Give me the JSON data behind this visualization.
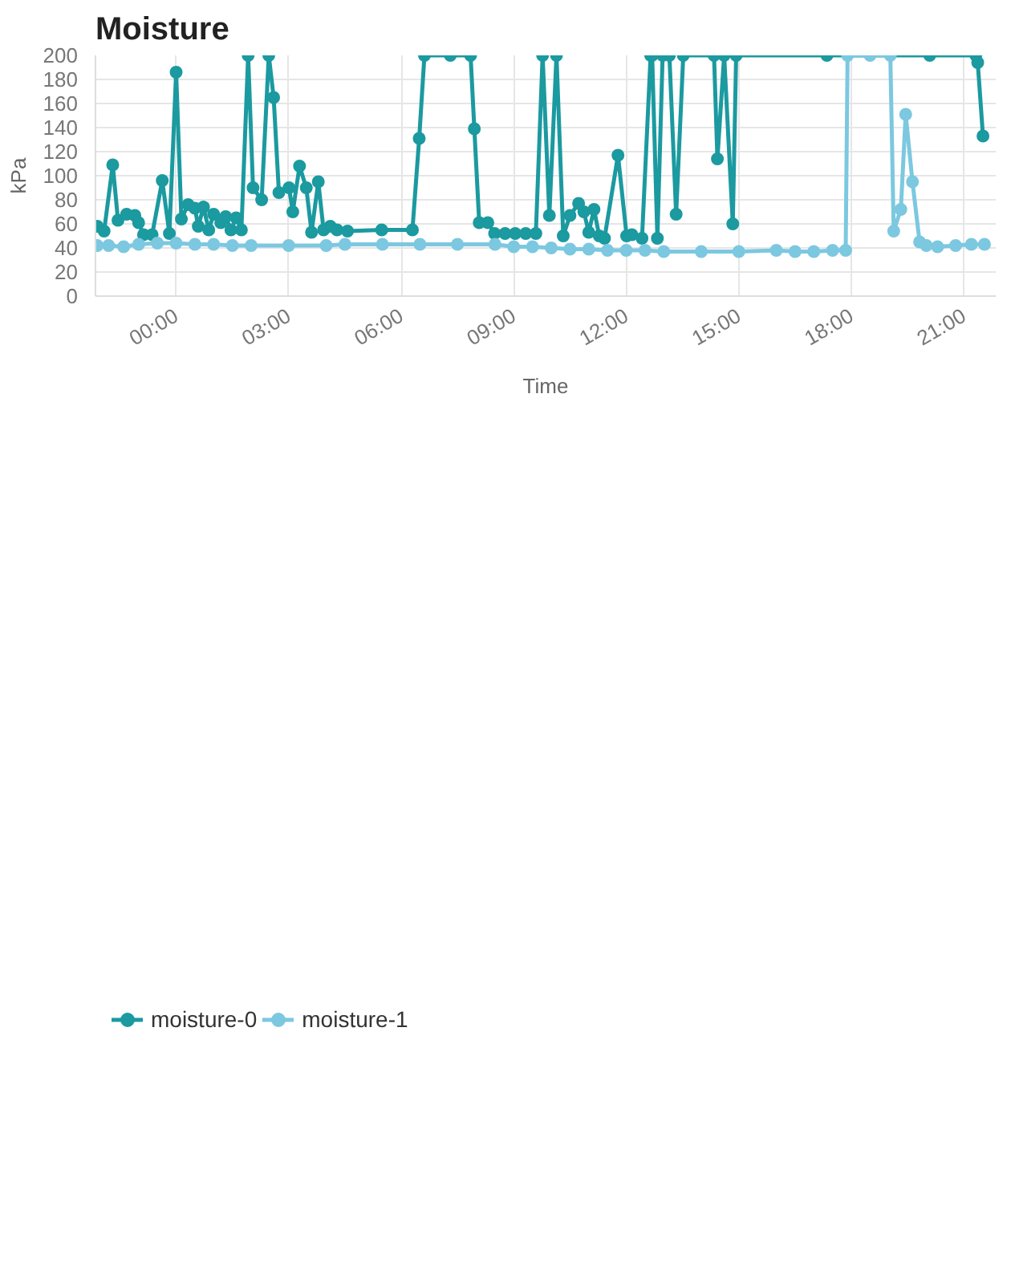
{
  "chart_data": {
    "type": "line",
    "title": "Moisture",
    "xlabel": "Time",
    "ylabel": "kPa",
    "xlim": [
      -2.15,
      21.85
    ],
    "ylim": [
      0,
      200
    ],
    "xticks": [
      {
        "value": 0,
        "label": "00:00"
      },
      {
        "value": 3,
        "label": "03:00"
      },
      {
        "value": 6,
        "label": "06:00"
      },
      {
        "value": 9,
        "label": "09:00"
      },
      {
        "value": 12,
        "label": "12:00"
      },
      {
        "value": 15,
        "label": "15:00"
      },
      {
        "value": 18,
        "label": "18:00"
      },
      {
        "value": 21,
        "label": "21:00"
      }
    ],
    "yticks": [
      0,
      20,
      40,
      60,
      80,
      100,
      120,
      140,
      160,
      180,
      200
    ],
    "grid": true,
    "legend": "bottom left",
    "marker": "circle",
    "line_style": "solid",
    "series": [
      {
        "name": "moisture-0",
        "color": "#1b9aa0",
        "x": [
          -2.1,
          -1.92,
          -1.69,
          -1.55,
          -1.32,
          -1.1,
          -1.0,
          -0.87,
          -0.64,
          -0.37,
          -0.18,
          0,
          0.14,
          0.32,
          0.5,
          0.59,
          0.73,
          0.87,
          1.0,
          1.19,
          1.32,
          1.46,
          1.6,
          1.74,
          1.92,
          2.05,
          2.28,
          2.47,
          2.6,
          2.74,
          3.01,
          3.11,
          3.29,
          3.47,
          3.61,
          3.79,
          3.93,
          4.11,
          4.29,
          4.57,
          5.48,
          6.3,
          6.48,
          6.62,
          7.31,
          7.85,
          7.95,
          8.08,
          8.31,
          8.49,
          8.77,
          9.04,
          9.32,
          9.59,
          9.77,
          9.95,
          10.14,
          10.32,
          10.5,
          10.73,
          10.87,
          11.0,
          11.14,
          11.28,
          11.42,
          11.78,
          12.01,
          12.15,
          12.42,
          12.65,
          12.69,
          12.83,
          12.97,
          13.15,
          13.33,
          13.52,
          14.34,
          14.43,
          14.61,
          14.84,
          14.93,
          17.35,
          20.09,
          21.32,
          21.37,
          21.51
        ],
        "values": [
          58,
          54,
          109,
          63,
          68,
          67,
          61,
          51,
          51,
          96,
          52,
          186,
          64,
          76,
          73,
          58,
          74,
          55,
          68,
          61,
          66,
          55,
          65,
          55,
          200,
          90,
          80,
          200,
          165,
          86,
          90,
          70,
          108,
          90,
          53,
          95,
          55,
          58,
          55,
          54,
          55,
          55,
          131,
          200,
          200,
          200,
          139,
          61,
          61,
          52,
          52,
          52,
          52,
          52,
          200,
          67,
          200,
          50,
          67,
          77,
          70,
          53,
          72,
          50,
          48,
          117,
          50,
          51,
          48,
          200,
          200,
          48,
          200,
          200,
          68,
          200,
          200,
          114,
          200,
          60,
          200,
          200,
          200,
          200,
          194,
          133
        ]
      },
      {
        "name": "moisture-1",
        "color": "#7cc8e0",
        "x": [
          -2.1,
          -1.8,
          -1.4,
          -1.0,
          -0.5,
          0,
          0.5,
          1.0,
          1.5,
          2.0,
          3.0,
          4.0,
          4.5,
          5.5,
          6.5,
          7.5,
          8.5,
          9.0,
          9.5,
          10.0,
          10.5,
          11.0,
          11.5,
          12.0,
          12.5,
          13.0,
          14.0,
          15.0,
          16.0,
          16.5,
          17.0,
          17.5,
          17.85,
          17.9,
          18.5,
          19.04,
          19.13,
          19.32,
          19.45,
          19.63,
          19.82,
          20.0,
          20.3,
          20.78,
          21.2,
          21.55
        ],
        "values": [
          42,
          42,
          41,
          43,
          44,
          44,
          43,
          43,
          42,
          42,
          42,
          42,
          43,
          43,
          43,
          43,
          43,
          41,
          41,
          40,
          39,
          39,
          38,
          38,
          38,
          37,
          37,
          37,
          38,
          37,
          37,
          38,
          38,
          200,
          200,
          200,
          54,
          72,
          151,
          95,
          45,
          42,
          41,
          42,
          43,
          43
        ]
      }
    ]
  }
}
